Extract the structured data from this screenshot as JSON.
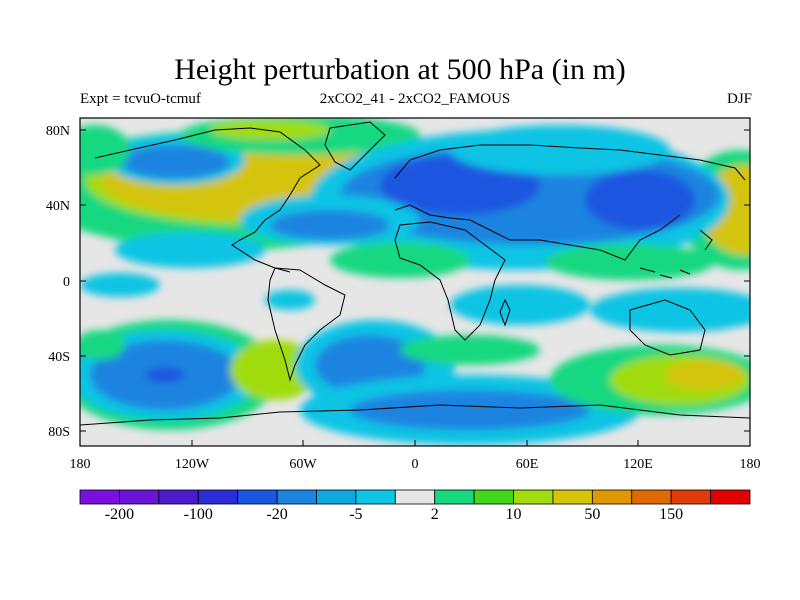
{
  "title": "Height perturbation at 500 hPa (in m)",
  "subtitle_left": "Expt = tcvuO-tcmuf",
  "subtitle_center": "2xCO2_41 - 2xCO2_FAMOUS",
  "subtitle_right": "DJF",
  "y_ticks": [
    "80N",
    "40N",
    "0",
    "40S",
    "80S"
  ],
  "x_ticks": [
    "180",
    "120W",
    "60W",
    "0",
    "60E",
    "120E",
    "180"
  ],
  "colorbar": {
    "colors": [
      "#7a10e0",
      "#6a14d8",
      "#4a1ccc",
      "#2a2dd8",
      "#1a56e0",
      "#1a84e0",
      "#10a8e0",
      "#10c4e4",
      "#e6e6e6",
      "#18d880",
      "#40d818",
      "#a0dc10",
      "#d4c40a",
      "#e09800",
      "#e06a00",
      "#e03c0a",
      "#e00000"
    ],
    "labels": [
      "-200",
      "-100",
      "-20",
      "-5",
      "2",
      "10",
      "50",
      "150"
    ]
  }
}
